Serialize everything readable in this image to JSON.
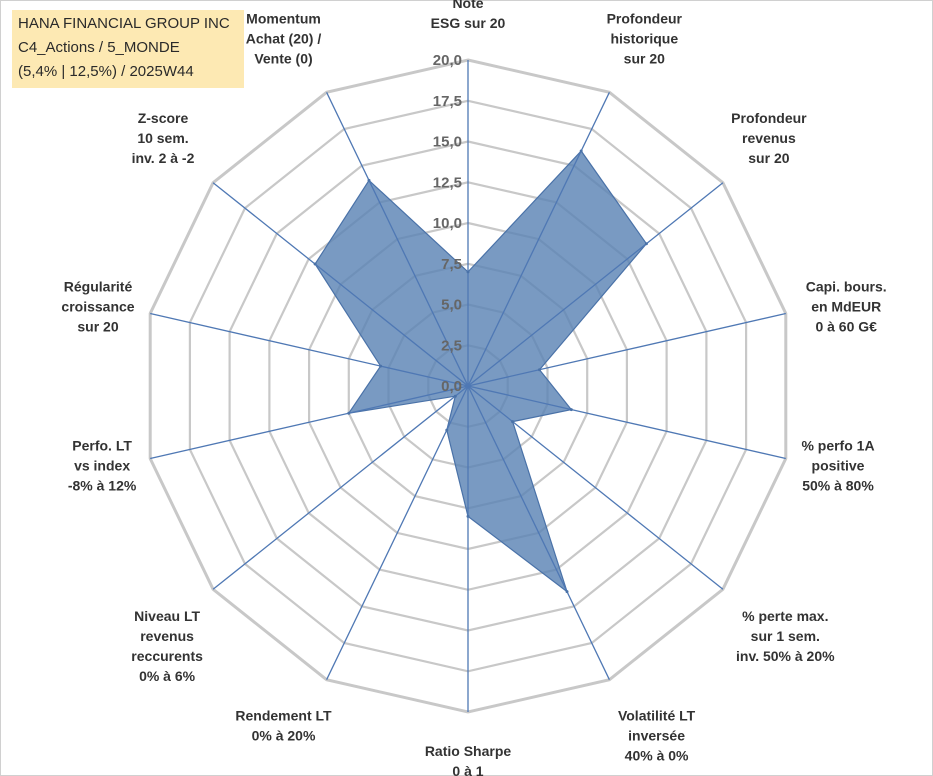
{
  "title_box": {
    "line1": "HANA FINANCIAL GROUP INC",
    "line2": "C4_Actions / 5_MONDE",
    "line3": "(5,4% | 12,5%) / 2025W44"
  },
  "colors": {
    "fill": "#5b84b5",
    "stroke": "#4a72a8",
    "spoke": "#4f78b4",
    "grid": "#c8c8c8",
    "title_bg": "#fde9b3"
  },
  "chart_data": {
    "type": "radar",
    "rmin": 0,
    "rmax": 20,
    "ticks": [
      "0,0",
      "2,5",
      "5,0",
      "7,5",
      "10,0",
      "12,5",
      "15,0",
      "17,5",
      "20,0"
    ],
    "axes": [
      {
        "lines": [
          "Note",
          "ESG sur 20"
        ],
        "value": 7.0
      },
      {
        "lines": [
          "Profondeur",
          "historique",
          "sur 20"
        ],
        "value": 16.0
      },
      {
        "lines": [
          "Profondeur",
          "revenus",
          "sur 20"
        ],
        "value": 14.0
      },
      {
        "lines": [
          "Capi. bours.",
          "en MdEUR",
          "0 à 60 G€"
        ],
        "value": 4.5
      },
      {
        "lines": [
          "% perfo 1A",
          "positive",
          "50% à 80%"
        ],
        "value": 6.5
      },
      {
        "lines": [
          "% perte max.",
          "sur 1 sem.",
          "inv. 50% à 20%"
        ],
        "value": 3.5
      },
      {
        "lines": [
          "Volatilité LT",
          "inversée",
          "40% à 0%"
        ],
        "value": 14.0
      },
      {
        "lines": [
          "Ratio Sharpe",
          "0 à 1"
        ],
        "value": 8.0
      },
      {
        "lines": [
          "Rendement LT",
          "0% à 20%"
        ],
        "value": 3.0
      },
      {
        "lines": [
          "Niveau LT",
          "revenus",
          "reccurents",
          "0% à 6%"
        ],
        "value": 1.0
      },
      {
        "lines": [
          "Perfo. LT",
          "vs index",
          "-8% à 12%"
        ],
        "value": 7.5
      },
      {
        "lines": [
          "Régularité",
          "croissance",
          "sur 20"
        ],
        "value": 5.5
      },
      {
        "lines": [
          "Z-score",
          "10 sem.",
          "inv. 2 à -2"
        ],
        "value": 12.0
      },
      {
        "lines": [
          "Momentum",
          "Achat (20) /",
          "Vente (0)"
        ],
        "value": 14.0
      }
    ]
  }
}
